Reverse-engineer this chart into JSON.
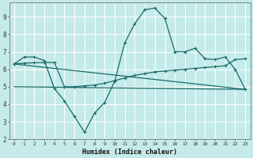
{
  "xlabel": "Humidex (Indice chaleur)",
  "bg_color": "#c5eaea",
  "grid_color": "#ffffff",
  "line_color": "#1a6b6b",
  "xlim": [
    -0.5,
    23.5
  ],
  "ylim": [
    2,
    9.8
  ],
  "line1_x": [
    0,
    1,
    2,
    3,
    4,
    5,
    6,
    7,
    8,
    9,
    10,
    11,
    12,
    13,
    14,
    15,
    16,
    17,
    18,
    19,
    20,
    21,
    22,
    23
  ],
  "line1_y": [
    6.3,
    6.7,
    6.7,
    6.5,
    4.9,
    4.2,
    3.3,
    2.4,
    3.5,
    4.1,
    5.3,
    7.5,
    8.6,
    9.4,
    9.5,
    8.9,
    7.0,
    7.0,
    7.2,
    6.6,
    6.55,
    6.7,
    6.0,
    4.85
  ],
  "line2_x": [
    0,
    1,
    2,
    3,
    4,
    5,
    6,
    7,
    8,
    9,
    10,
    11,
    12,
    13,
    14,
    15,
    16,
    17,
    18,
    19,
    20,
    21,
    22,
    23
  ],
  "line2_y": [
    6.3,
    6.35,
    6.37,
    6.38,
    6.39,
    5.0,
    5.0,
    5.05,
    5.1,
    5.2,
    5.35,
    5.5,
    5.65,
    5.75,
    5.85,
    5.9,
    5.95,
    6.0,
    6.05,
    6.1,
    6.15,
    6.2,
    6.55,
    6.6
  ],
  "line3_x": [
    0,
    23
  ],
  "line3_y": [
    5.0,
    4.85
  ],
  "line4_x": [
    0,
    23
  ],
  "line4_y": [
    6.3,
    4.85
  ],
  "yticks": [
    2,
    3,
    4,
    5,
    6,
    7,
    8,
    9
  ],
  "xticks": [
    0,
    1,
    2,
    3,
    4,
    5,
    6,
    7,
    8,
    9,
    10,
    11,
    12,
    13,
    14,
    15,
    16,
    17,
    18,
    19,
    20,
    21,
    22,
    23
  ]
}
